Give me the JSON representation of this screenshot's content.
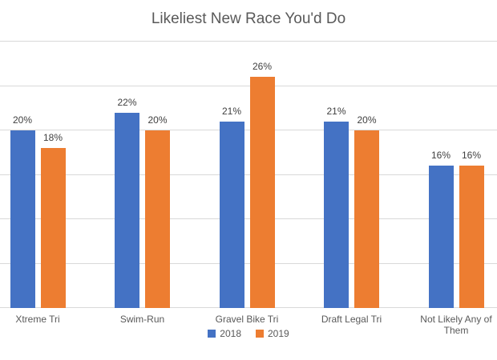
{
  "chart_data": {
    "type": "bar",
    "title": "Likeliest New Race You'd Do",
    "categories": [
      "Xtreme Tri",
      "Swim-Run",
      "Gravel Bike Tri",
      "Draft Legal Tri",
      "Not Likely Any of Them"
    ],
    "series": [
      {
        "name": "2018",
        "color": "#4472C4",
        "values": [
          20,
          22,
          21,
          21,
          16
        ]
      },
      {
        "name": "2019",
        "color": "#ED7D31",
        "values": [
          18,
          20,
          26,
          20,
          16
        ]
      }
    ],
    "value_suffix": "%",
    "data_labels": true,
    "ylim": [
      0,
      30
    ],
    "gridline_step": 5,
    "grid": true,
    "y_axis_labels_visible": false,
    "legend_position": "bottom",
    "xlabel": "",
    "ylabel": ""
  },
  "colors": {
    "series_2018": "#4472C4",
    "series_2019": "#ED7D31",
    "gridline": "#D9D9D9",
    "axis_line": "#D9D9D9",
    "title_text": "#595959",
    "axis_label_text": "#595959",
    "data_label_text": "#404040",
    "background": "#FFFFFF"
  }
}
